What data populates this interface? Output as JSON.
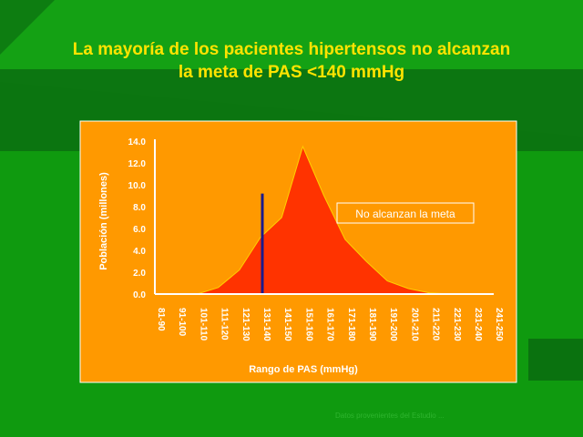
{
  "slide": {
    "title_line1": "La mayoría de los pacientes hipertensos no alcanzan",
    "title_line2": "la meta de PAS <140 mmHg",
    "footnote": "Datos provenientes del Estudio ...",
    "colors": {
      "background": "#0f9a0f",
      "band_dark": "#0a6e10",
      "title": "#ffe400",
      "panel": "#ff9900",
      "area": "#ff3300",
      "area_line": "#ffd000",
      "marker_line": "#1a1a8c"
    }
  },
  "chart_data": {
    "type": "area",
    "title": "",
    "xlabel": "Rango de PAS (mmHg)",
    "ylabel": "Población (millones)",
    "ylim": [
      0,
      14
    ],
    "yticks": [
      0.0,
      2.0,
      4.0,
      6.0,
      8.0,
      10.0,
      12.0,
      14.0
    ],
    "ytick_labels": [
      "0.0",
      "2.0",
      "4.0",
      "6.0",
      "8.0",
      "10.0",
      "12.0",
      "14.0"
    ],
    "categories": [
      "81-90",
      "91-100",
      "101-110",
      "111-120",
      "121-130",
      "131-140",
      "141-150",
      "151-160",
      "161-170",
      "171-180",
      "181-190",
      "191-200",
      "201-210",
      "211-220",
      "221-230",
      "231-240",
      "241-250"
    ],
    "values": [
      0,
      0,
      0,
      0.6,
      2.2,
      5.2,
      7.0,
      13.5,
      9.0,
      5.0,
      3.0,
      1.2,
      0.5,
      0.1,
      0,
      0,
      0
    ],
    "threshold_line": {
      "category_position": 5,
      "value": 9.2
    },
    "annotation": "No alcanzan la meta",
    "grid": false,
    "legend": "none"
  }
}
